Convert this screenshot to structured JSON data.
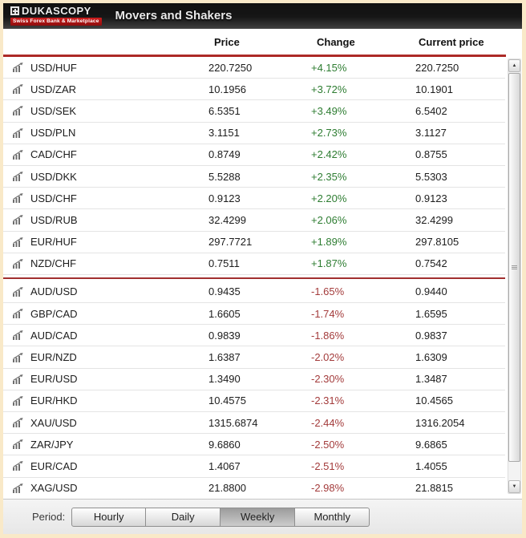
{
  "header": {
    "brand": "DUKASCOPY",
    "tagline": "Swiss Forex Bank & Marketplace",
    "title": "Movers and Shakers"
  },
  "columns": {
    "price": "Price",
    "change": "Change",
    "current": "Current price"
  },
  "table": {
    "gainers": [
      {
        "pair": "USD/HUF",
        "price": "220.7250",
        "change": "+4.15%",
        "current": "220.7250"
      },
      {
        "pair": "USD/ZAR",
        "price": "10.1956",
        "change": "+3.72%",
        "current": "10.1901"
      },
      {
        "pair": "USD/SEK",
        "price": "6.5351",
        "change": "+3.49%",
        "current": "6.5402"
      },
      {
        "pair": "USD/PLN",
        "price": "3.1151",
        "change": "+2.73%",
        "current": "3.1127"
      },
      {
        "pair": "CAD/CHF",
        "price": "0.8749",
        "change": "+2.42%",
        "current": "0.8755"
      },
      {
        "pair": "USD/DKK",
        "price": "5.5288",
        "change": "+2.35%",
        "current": "5.5303"
      },
      {
        "pair": "USD/CHF",
        "price": "0.9123",
        "change": "+2.20%",
        "current": "0.9123"
      },
      {
        "pair": "USD/RUB",
        "price": "32.4299",
        "change": "+2.06%",
        "current": "32.4299"
      },
      {
        "pair": "EUR/HUF",
        "price": "297.7721",
        "change": "+1.89%",
        "current": "297.8105"
      },
      {
        "pair": "NZD/CHF",
        "price": "0.7511",
        "change": "+1.87%",
        "current": "0.7542"
      }
    ],
    "losers": [
      {
        "pair": "AUD/USD",
        "price": "0.9435",
        "change": "-1.65%",
        "current": "0.9440"
      },
      {
        "pair": "GBP/CAD",
        "price": "1.6605",
        "change": "-1.74%",
        "current": "1.6595"
      },
      {
        "pair": "AUD/CAD",
        "price": "0.9839",
        "change": "-1.86%",
        "current": "0.9837"
      },
      {
        "pair": "EUR/NZD",
        "price": "1.6387",
        "change": "-2.02%",
        "current": "1.6309"
      },
      {
        "pair": "EUR/USD",
        "price": "1.3490",
        "change": "-2.30%",
        "current": "1.3487"
      },
      {
        "pair": "EUR/HKD",
        "price": "10.4575",
        "change": "-2.31%",
        "current": "10.4565"
      },
      {
        "pair": "XAU/USD",
        "price": "1315.6874",
        "change": "-2.44%",
        "current": "1316.2054"
      },
      {
        "pair": "ZAR/JPY",
        "price": "9.6860",
        "change": "-2.50%",
        "current": "9.6865"
      },
      {
        "pair": "EUR/CAD",
        "price": "1.4067",
        "change": "-2.51%",
        "current": "1.4055"
      },
      {
        "pair": "XAG/USD",
        "price": "21.8800",
        "change": "-2.98%",
        "current": "21.8815"
      }
    ]
  },
  "period": {
    "label": "Period:",
    "options": [
      "Hourly",
      "Daily",
      "Weekly",
      "Monthly"
    ],
    "selected": "Weekly"
  },
  "icons": {
    "row_icon": "trend-chart-icon",
    "scroll_up_glyph": "▲",
    "scroll_down_glyph": "▼",
    "logo_icon": "plus-square-icon"
  },
  "colors": {
    "positive": "#2e7d32",
    "negative": "#a33b3b",
    "top_rule": "#ad2a27",
    "section_divider": "#a12f2f",
    "frame": "#f9e9c8",
    "titlebar": "#161616",
    "tagline_red": "#b51414",
    "selected_period_bg": "#9c9c9c"
  }
}
